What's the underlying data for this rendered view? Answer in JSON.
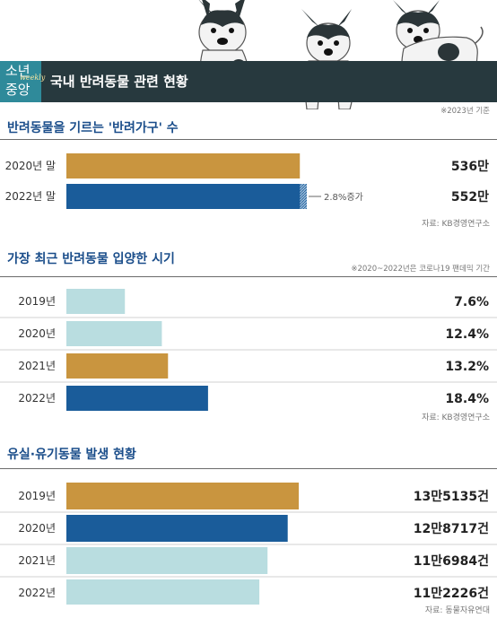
{
  "header": {
    "logo_line1": "소년",
    "logo_weekly": "weekly",
    "logo_line2": "중앙",
    "title": "국내 반려동물 관련 현황",
    "note": "※2023년 기준"
  },
  "colors": {
    "gold": "#c9953f",
    "blue": "#1a5c9a",
    "lightblue": "#b9dde0",
    "dark": "#27393e",
    "accent": "#1a4d8a"
  },
  "sections": {
    "s1": {
      "title": "반려동물을 기르는 '반려가구' 수",
      "source": "자료: KB경영연구소"
    },
    "s2": {
      "title": "가장 최근 반려동물 입양한 시기",
      "note": "※2020~2022년은 코로나19 팬데믹 기간",
      "source": "자료: KB경영연구소"
    },
    "s3": {
      "title": "유실·유기동물 발생 현황",
      "source": "자료: 동물자유연대"
    }
  },
  "chart_data": [
    {
      "type": "bar",
      "orientation": "horizontal",
      "title": "반려동물을 기르는 '반려가구' 수",
      "categories": [
        "2020년 말",
        "2022년 말"
      ],
      "values": [
        536,
        552
      ],
      "value_labels": [
        "536만",
        "552만"
      ],
      "bar_colors": [
        "gold",
        "blue"
      ],
      "annotation": "2.8%증가",
      "xlim": [
        0,
        552
      ]
    },
    {
      "type": "bar",
      "orientation": "horizontal",
      "title": "가장 최근 반려동물 입양한 시기",
      "categories": [
        "2019년",
        "2020년",
        "2021년",
        "2022년"
      ],
      "values": [
        7.6,
        12.4,
        13.2,
        18.4
      ],
      "value_labels": [
        "7.6%",
        "12.4%",
        "13.2%",
        "18.4%"
      ],
      "bar_colors": [
        "lightblue",
        "lightblue",
        "gold",
        "blue"
      ],
      "xlim": [
        0,
        55
      ]
    },
    {
      "type": "bar",
      "orientation": "horizontal",
      "title": "유실·유기동물 발생 현황",
      "categories": [
        "2019년",
        "2020년",
        "2021년",
        "2022년"
      ],
      "values": [
        135135,
        128717,
        116984,
        112226
      ],
      "value_labels": [
        "13만5135건",
        "12만8717건",
        "11만6984건",
        "11만2226건"
      ],
      "bar_colors": [
        "gold",
        "blue",
        "lightblue",
        "lightblue"
      ],
      "xlim": [
        0,
        135135
      ]
    }
  ]
}
